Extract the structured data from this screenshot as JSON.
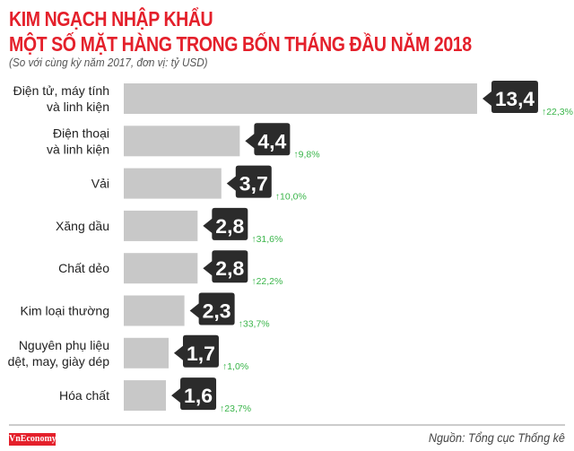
{
  "chart_data": {
    "type": "bar",
    "orientation": "horizontal",
    "title": "KIM NGẠCH NHẬP KHẨU",
    "subtitle_line": "MỘT SỐ MẶT HÀNG TRONG BỐN THÁNG ĐẦU NĂM 2018",
    "note": "(So với cùng kỳ năm 2017, đơn vị: tỷ USD)",
    "categories": [
      [
        "Điện tử, máy tính",
        "và linh kiện"
      ],
      [
        "Điện thoại",
        "và linh kiện"
      ],
      [
        "Vải"
      ],
      [
        "Xăng dầu"
      ],
      [
        "Chất dẻo"
      ],
      [
        "Kim loại thường"
      ],
      [
        "Nguyên phụ liệu",
        "dệt, may, giày dép"
      ],
      [
        "Hóa chất"
      ]
    ],
    "values": [
      13.4,
      4.4,
      3.7,
      2.8,
      2.8,
      2.3,
      1.7,
      1.6
    ],
    "value_labels": [
      "13,4",
      "4,4",
      "3,7",
      "2,8",
      "2,8",
      "2,3",
      "1,7",
      "1,6"
    ],
    "growth_labels": [
      "22,3%",
      "9,8%",
      "10,0%",
      "31,6%",
      "22,2%",
      "33,7%",
      "1,0%",
      "23,7%"
    ],
    "colors": {
      "title": "#e4202b",
      "bar": "#c8c8c8",
      "tag": "#2b2b2b",
      "growth": "#3ab54a"
    }
  },
  "footer": {
    "logo": "VnEconomy",
    "source": "Nguồn: Tổng cục Thống kê"
  }
}
